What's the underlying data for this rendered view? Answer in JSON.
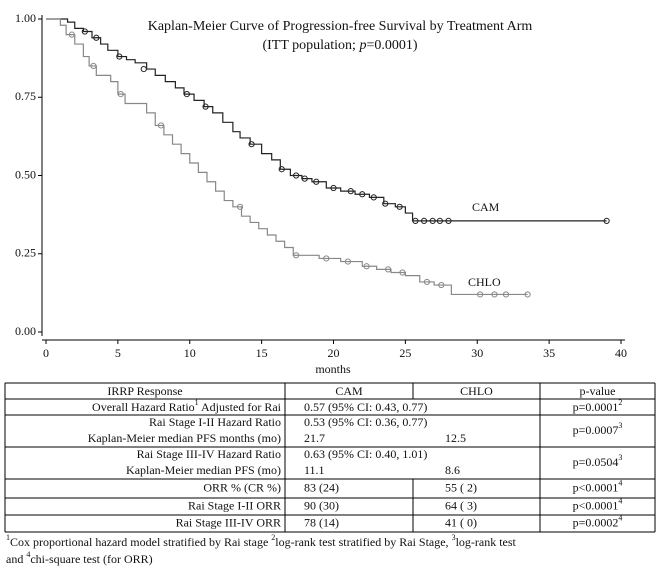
{
  "chart_data": {
    "type": "km",
    "title": "Kaplan-Meier Curve of Progression-free Survival by Treatment Arm",
    "subtitle": [
      {
        "text": "(ITT population; "
      },
      {
        "italic": "p"
      },
      {
        "text": "=0.0001)"
      }
    ],
    "xlabel": "months",
    "xlim": [
      0,
      40
    ],
    "xticks": [
      0,
      5,
      10,
      15,
      20,
      25,
      30,
      35,
      40
    ],
    "ylim": [
      0,
      1
    ],
    "yticks": [
      {
        "value": 0,
        "label": "0.00"
      },
      {
        "value": 0.25,
        "label": "0.25"
      },
      {
        "value": 0.5,
        "label": "0.50"
      },
      {
        "value": 0.75,
        "label": "0.75"
      },
      {
        "value": 1,
        "label": "1.00"
      }
    ],
    "series": [
      {
        "name": "CAM",
        "color": "#222222",
        "x": [
          0,
          1.5,
          2,
          2.6,
          3.2,
          3.8,
          4.3,
          5,
          5.6,
          6.2,
          7,
          7.6,
          8.3,
          9,
          9.6,
          10.3,
          11,
          11.6,
          12.3,
          13,
          13.5,
          14.2,
          15,
          15.7,
          16.3,
          17,
          17.8,
          18.5,
          19.5,
          20.5,
          21.5,
          22.5,
          23.5,
          24.3,
          25,
          25.5,
          39
        ],
        "values": [
          1,
          0.99,
          0.97,
          0.96,
          0.94,
          0.92,
          0.9,
          0.88,
          0.87,
          0.86,
          0.84,
          0.82,
          0.8,
          0.78,
          0.76,
          0.74,
          0.72,
          0.7,
          0.67,
          0.64,
          0.62,
          0.6,
          0.57,
          0.55,
          0.52,
          0.5,
          0.49,
          0.48,
          0.46,
          0.45,
          0.44,
          0.43,
          0.41,
          0.4,
          0.38,
          0.355,
          0.355
        ],
        "censored_x": [
          2.7,
          3.5,
          5.1,
          6.8,
          9.8,
          11.1,
          14.3,
          16.4,
          17.4,
          18,
          18.8,
          20,
          21.2,
          22,
          22.8,
          23.6,
          24.6,
          25.7,
          26.3,
          26.9,
          27.4,
          28,
          39
        ],
        "censored_y": [
          0.96,
          0.94,
          0.88,
          0.84,
          0.76,
          0.72,
          0.6,
          0.52,
          0.5,
          0.49,
          0.48,
          0.46,
          0.45,
          0.44,
          0.43,
          0.41,
          0.4,
          0.355,
          0.355,
          0.355,
          0.355,
          0.355,
          0.355
        ]
      },
      {
        "name": "CHLO",
        "color": "#888888",
        "x": [
          0,
          1,
          1.4,
          2,
          2.6,
          3,
          3.5,
          4.5,
          5,
          5.5,
          7,
          7.6,
          8.2,
          8.8,
          9.4,
          10,
          10.6,
          11.2,
          11.8,
          12.4,
          13,
          13.6,
          14.2,
          14.8,
          15.4,
          16,
          16.6,
          17.2,
          19,
          20.5,
          22,
          23,
          24,
          25,
          26,
          27,
          28.2,
          33.5
        ],
        "values": [
          1,
          0.98,
          0.95,
          0.92,
          0.88,
          0.85,
          0.82,
          0.8,
          0.76,
          0.73,
          0.7,
          0.66,
          0.63,
          0.6,
          0.57,
          0.54,
          0.51,
          0.48,
          0.45,
          0.42,
          0.4,
          0.37,
          0.35,
          0.33,
          0.31,
          0.29,
          0.27,
          0.245,
          0.235,
          0.225,
          0.21,
          0.2,
          0.19,
          0.18,
          0.16,
          0.15,
          0.12,
          0.12
        ],
        "censored_x": [
          1.8,
          3.3,
          5.2,
          8,
          13.5,
          17.4,
          19.5,
          21,
          22.3,
          23.8,
          24.8,
          26.5,
          27.5,
          30.2,
          31.2,
          32,
          33.5
        ],
        "censored_y": [
          0.95,
          0.85,
          0.76,
          0.66,
          0.4,
          0.245,
          0.235,
          0.225,
          0.21,
          0.2,
          0.19,
          0.16,
          0.15,
          0.12,
          0.12,
          0.12,
          0.12
        ]
      }
    ]
  },
  "table": {
    "header": [
      "IRRP Response",
      "CAM",
      "CHLO",
      "p-value"
    ],
    "overall": {
      "label": [
        {
          "text": "Overall Hazard Ratio"
        },
        {
          "sup": "1"
        },
        {
          "text": " Adjusted for Rai"
        }
      ],
      "hr": "0.57 (95% CI: 0.43, 0.77)",
      "p": [
        {
          "text": "p=0.0001"
        },
        {
          "sup": "2"
        }
      ]
    },
    "blocks": [
      {
        "label1": "Rai Stage I-II Hazard Ratio",
        "hr": "0.53 (95% CI: 0.36, 0.77)",
        "label2": "Kaplan-Meier median PFS months (mo)",
        "cam": "21.7",
        "chlo": "12.5",
        "p": [
          {
            "text": "p=0.0007"
          },
          {
            "sup": "3"
          }
        ]
      },
      {
        "label1": "Rai Stage III-IV Hazard Ratio",
        "hr": "0.63 (95% CI: 0.40, 1.01)",
        "label2": "Kaplan-Meier median PFS (mo)",
        "cam": "11.1",
        "chlo": "8.6",
        "p": [
          {
            "text": "p=0.0504"
          },
          {
            "sup": "3"
          }
        ]
      }
    ],
    "orr": [
      {
        "label": "ORR % (CR %)",
        "cam": "83 (24)",
        "chlo": "55 ( 2)",
        "p": [
          {
            "text": "p<0.0001"
          },
          {
            "sup": "4"
          }
        ]
      },
      {
        "label": "Rai Stage I-II ORR",
        "cam": "90 (30)",
        "chlo": "64 ( 3)",
        "p": [
          {
            "text": "p<0.0001"
          },
          {
            "sup": "4"
          }
        ]
      },
      {
        "label": "Rai Stage III-IV ORR",
        "cam": "78 (14)",
        "chlo": "41 ( 0)",
        "p": [
          {
            "text": "p=0.0002"
          },
          {
            "sup": "4"
          }
        ]
      }
    ]
  },
  "footnote": [
    [
      {
        "sup": "1"
      },
      {
        "text": "Cox proportional hazard model stratified by Rai stage "
      },
      {
        "sup": "2"
      },
      {
        "text": "log-rank test stratified by Rai Stage, "
      },
      {
        "sup": "3"
      },
      {
        "text": "log-rank test"
      }
    ],
    [
      {
        "text": "and "
      },
      {
        "sup": "4"
      },
      {
        "text": "chi-square test (for ORR)"
      }
    ]
  ]
}
